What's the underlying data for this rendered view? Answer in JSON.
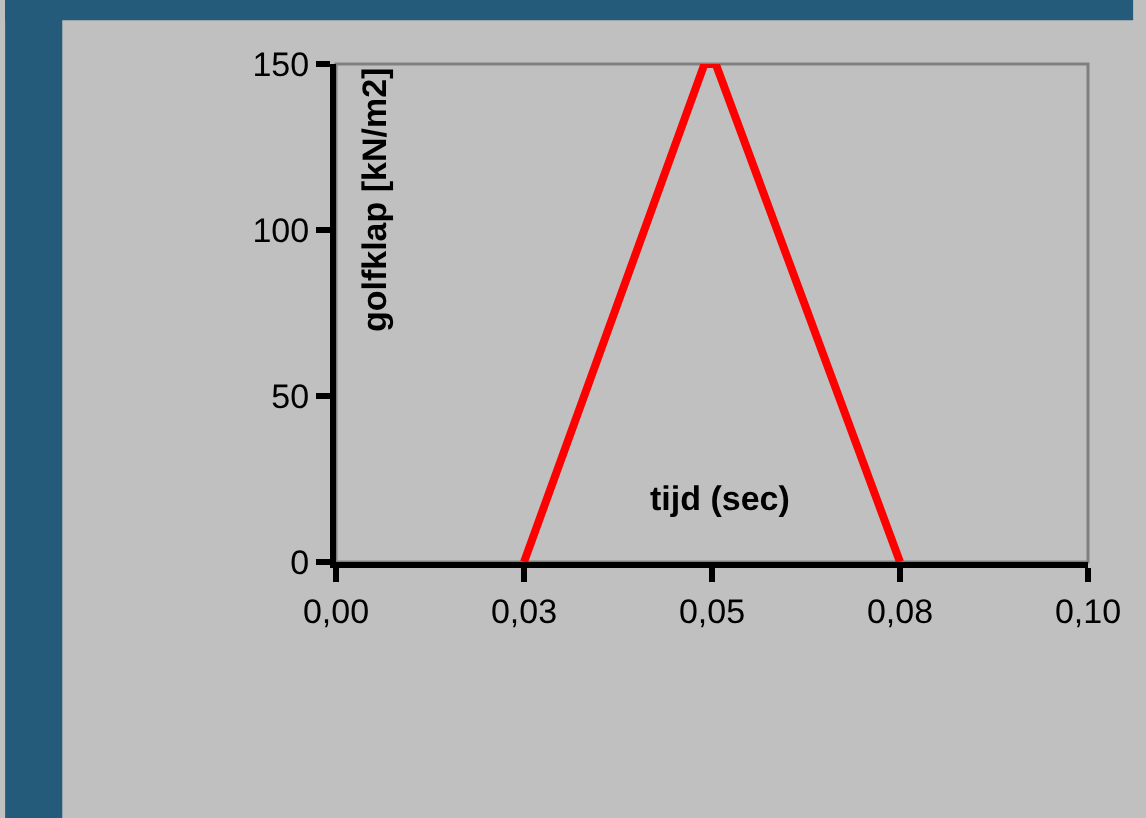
{
  "chart_data": {
    "type": "line",
    "xlabel": "tijd (sec)",
    "ylabel": "golfklap [kN/m2]",
    "x": [
      0.025,
      0.049,
      0.0505,
      0.075
    ],
    "series": [
      {
        "color": "#ff0000",
        "values": [
          0,
          150,
          150,
          0
        ]
      }
    ],
    "xlim": [
      0,
      0.1
    ],
    "ylim": [
      0,
      150
    ],
    "xticks": [
      {
        "value": 0,
        "label": "0,00"
      },
      {
        "value": 0.025,
        "label": "0,03"
      },
      {
        "value": 0.05,
        "label": "0,05"
      },
      {
        "value": 0.075,
        "label": "0,08"
      },
      {
        "value": 0.1,
        "label": "0,10"
      }
    ],
    "yticks": [
      0,
      50,
      100,
      150
    ],
    "grid": false,
    "marker": "none",
    "line_style": "solid"
  }
}
